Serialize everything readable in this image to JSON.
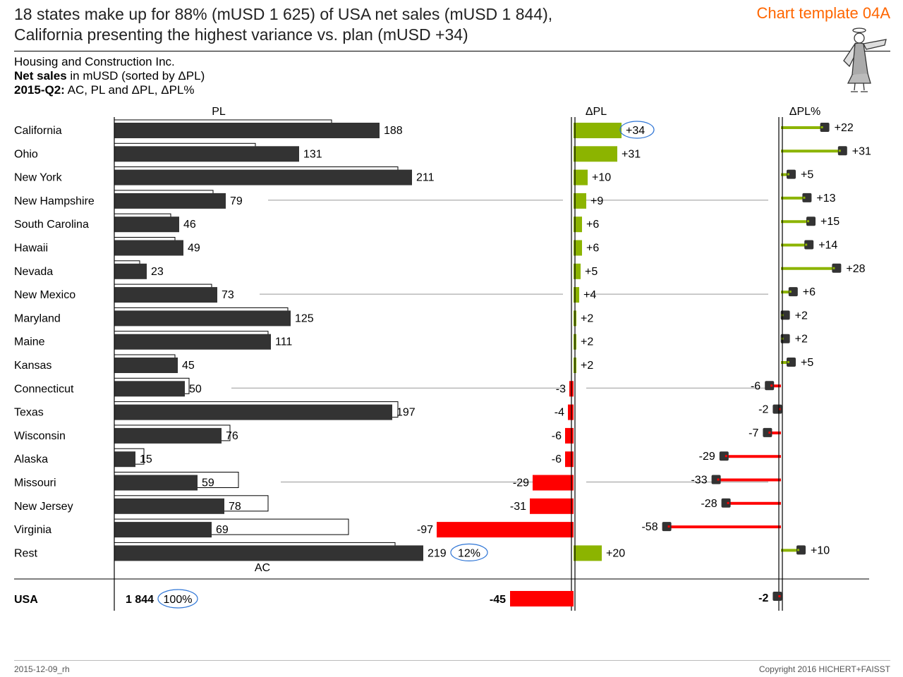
{
  "header": {
    "title_line1": "18 states make up for 88% (mUSD 1 625) of USA net sales (mUSD 1 844),",
    "title_line2": "California presenting the highest variance vs. plan (mUSD +34)",
    "template_tag": "Chart template 04A",
    "company": "Housing and Construction Inc.",
    "measure_bold": "Net sales",
    "measure_rest": " in mUSD (sorted by ΔPL)",
    "period_bold": "2015-Q2:",
    "period_rest": " AC, PL and ΔPL, ΔPL%"
  },
  "footer": {
    "left": "2015-12-09_rh",
    "right": "Copyright 2016 HICHERT+FAISST"
  },
  "colors": {
    "actual": "#333333",
    "positive": "#8cb400",
    "negative": "#ff0000",
    "highlight": "#2e75d6",
    "tag": "#ff6600"
  },
  "chart_data": {
    "type": "bar",
    "column_headers": {
      "pl": "PL",
      "ac": "AC",
      "delta_pl": "ΔPL",
      "delta_pl_pct": "ΔPL%"
    },
    "categories": [
      "California",
      "Ohio",
      "New York",
      "New Hampshire",
      "South Carolina",
      "Hawaii",
      "Nevada",
      "New Mexico",
      "Maryland",
      "Maine",
      "Kansas",
      "Connecticut",
      "Texas",
      "Wisconsin",
      "Alaska",
      "Missouri",
      "New Jersey",
      "Virginia",
      "Rest"
    ],
    "series": [
      {
        "name": "AC",
        "values": [
          188,
          131,
          211,
          79,
          46,
          49,
          23,
          73,
          125,
          111,
          45,
          50,
          197,
          76,
          15,
          59,
          78,
          69,
          219
        ]
      },
      {
        "name": "PL",
        "values": [
          154,
          100,
          201,
          70,
          40,
          43,
          18,
          69,
          123,
          109,
          43,
          53,
          201,
          82,
          21,
          88,
          109,
          166,
          199
        ]
      },
      {
        "name": "ΔPL",
        "values": [
          34,
          31,
          10,
          9,
          6,
          6,
          5,
          4,
          2,
          2,
          2,
          -3,
          -4,
          -6,
          -6,
          -29,
          -31,
          -97,
          20
        ]
      },
      {
        "name": "ΔPL%",
        "values": [
          22,
          31,
          5,
          13,
          15,
          14,
          28,
          6,
          2,
          2,
          5,
          -6,
          -2,
          -7,
          -29,
          -33,
          -28,
          -58,
          10
        ]
      }
    ],
    "delta_pl_labels": [
      "+34",
      "+31",
      "+10",
      "+9",
      "+6",
      "+6",
      "+5",
      "+4",
      "+2",
      "+2",
      "+2",
      "-3",
      "-4",
      "-6",
      "-6",
      "-29",
      "-31",
      "-97",
      "+20"
    ],
    "delta_pct_labels": [
      "+22",
      "+31",
      "+5",
      "+13",
      "+15",
      "+14",
      "+28",
      "+6",
      "+2",
      "+2",
      "+5",
      "-6",
      "-2",
      "-7",
      "-29",
      "-33",
      "-28",
      "-58",
      "+10"
    ],
    "rest_share_label": "12%",
    "total": {
      "label": "USA",
      "ac_label": "1 844",
      "share_label": "100%",
      "delta_pl": -45,
      "delta_pl_label": "-45",
      "delta_pct": -2,
      "delta_pct_label": "-2"
    },
    "highlighted": [
      "California ΔPL +34",
      "Rest share 12%",
      "USA share 100%"
    ]
  }
}
